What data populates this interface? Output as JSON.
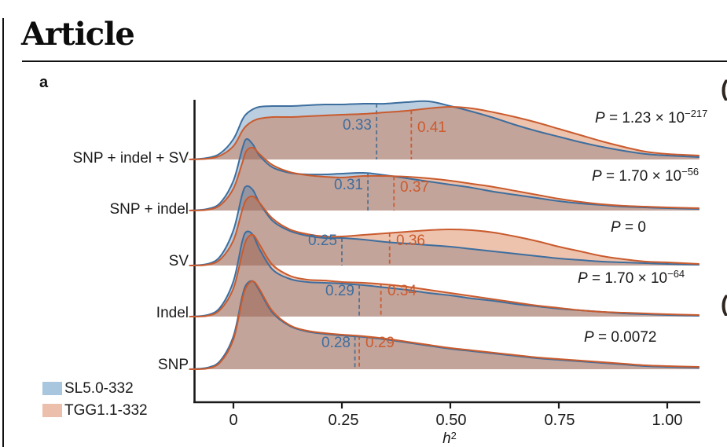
{
  "header": {
    "title": "Article"
  },
  "figure": {
    "panel_label": "a"
  },
  "labels": {
    "p_symbol": "P"
  },
  "legend": {
    "position": "bottom-left",
    "items": [
      {
        "label": "SL5.0-332",
        "color": "#a9c6df"
      },
      {
        "label": "TGG1.1-332",
        "color": "#ebbfac"
      }
    ]
  },
  "axis": {
    "x_ticks": [
      "0",
      "0.25",
      "0.50",
      "0.75",
      "1.00"
    ],
    "x_tick_values": [
      0,
      0.25,
      0.5,
      0.75,
      1.0
    ],
    "label_base": "h",
    "label_exp": "2"
  },
  "colors": {
    "sl_line": "#3d6e9e",
    "tgg_line": "#c95b2e",
    "sl_fill": "#4a7fae",
    "tgg_fill": "#d2622a",
    "sl_dash": "#53718e",
    "tgg_dash": "#cb5b2e",
    "axis": "#1a1a1a"
  },
  "edge_glyphs": [
    "(",
    "("
  ],
  "chart_data": {
    "type": "area",
    "subtype": "ridgeline-density",
    "title": "",
    "xlabel": "h2",
    "ylabel": "",
    "x_range": [
      -0.1,
      1.074
    ],
    "series_names": [
      "SL5.0-332",
      "TGG1.1-332"
    ],
    "note": "y values are estimated density curve heights (px above each ridge baseline)",
    "x_grid": [
      -0.102,
      -0.06,
      -0.03,
      0,
      0.02,
      0.03,
      0.045,
      0.06,
      0.09,
      0.13,
      0.17,
      0.21,
      0.25,
      0.3,
      0.35,
      0.4,
      0.45,
      0.5,
      0.55,
      0.6,
      0.65,
      0.7,
      0.75,
      0.8,
      0.85,
      0.9,
      0.95,
      1.0,
      1.074
    ],
    "ridges": [
      {
        "label": "SNP + indel + SV",
        "median_sl": 0.33,
        "median_tgg": 0.41,
        "median_sl_label": "0.33",
        "median_tgg_label": "0.41",
        "p_base": " = 1.23 × 10",
        "p_exp": "−217",
        "sl": [
          0,
          2,
          8,
          26,
          50,
          58,
          64,
          67,
          68,
          68,
          69,
          70,
          70,
          71,
          71,
          73,
          74,
          68,
          61,
          53,
          44,
          36,
          29,
          22,
          16,
          11,
          7,
          5,
          3
        ],
        "tgg": [
          0,
          1,
          5,
          17,
          36,
          43,
          49,
          52,
          54,
          54,
          55,
          56,
          57,
          58,
          60,
          62,
          65,
          67,
          65,
          60,
          54,
          47,
          39,
          31,
          23,
          16,
          10,
          7,
          5
        ]
      },
      {
        "label": "SNP + indel",
        "median_sl": 0.31,
        "median_tgg": 0.37,
        "median_sl_label": "0.31",
        "median_tgg_label": "0.37",
        "p_base": " = 1.70 × 10",
        "p_exp": "−56",
        "sl": [
          0,
          2,
          10,
          38,
          78,
          91,
          84,
          70,
          55,
          48,
          46,
          46,
          47,
          48,
          45,
          41,
          37,
          33,
          29,
          24,
          20,
          16,
          12,
          9,
          7,
          5,
          4,
          3,
          2
        ],
        "tgg": [
          0,
          1,
          7,
          28,
          60,
          76,
          80,
          72,
          58,
          49,
          45,
          43,
          42,
          44,
          44,
          43,
          41,
          38,
          34,
          30,
          25,
          20,
          15,
          11,
          8,
          6,
          5,
          4,
          3
        ]
      },
      {
        "label": "SV",
        "median_sl": 0.25,
        "median_tgg": 0.36,
        "median_sl_label": "0.25",
        "median_tgg_label": "0.36",
        "p_base": " = 0",
        "p_exp": "",
        "sl": [
          0,
          2,
          12,
          45,
          90,
          101,
          96,
          80,
          57,
          44,
          38,
          35,
          35,
          33,
          30,
          28,
          26,
          24,
          21,
          18,
          15,
          12,
          9,
          7,
          5,
          4,
          3,
          2,
          1
        ],
        "tgg": [
          0,
          1,
          8,
          32,
          70,
          84,
          88,
          80,
          60,
          46,
          40,
          37,
          37,
          39,
          41,
          43,
          45,
          46,
          45,
          42,
          37,
          31,
          24,
          18,
          12,
          8,
          5,
          4,
          2
        ]
      },
      {
        "label": "Indel",
        "median_sl": 0.29,
        "median_tgg": 0.34,
        "median_sl_label": "0.29",
        "median_tgg_label": "0.34",
        "p_base": " = 1.70 × 10",
        "p_exp": "−64",
        "sl": [
          0,
          2,
          12,
          45,
          95,
          108,
          104,
          86,
          60,
          48,
          44,
          43,
          42,
          40,
          37,
          34,
          30,
          27,
          23,
          20,
          16,
          13,
          10,
          8,
          6,
          4,
          3,
          2,
          1
        ],
        "tgg": [
          0,
          1,
          9,
          36,
          80,
          98,
          104,
          92,
          66,
          52,
          47,
          46,
          44,
          43,
          41,
          38,
          34,
          30,
          26,
          22,
          18,
          14,
          11,
          8,
          6,
          5,
          4,
          3,
          2
        ]
      },
      {
        "label": "SNP",
        "median_sl": 0.28,
        "median_tgg": 0.29,
        "median_sl_label": "0.28",
        "median_tgg_label": "0.29",
        "p_base": " = 0.0072",
        "p_exp": "",
        "sl": [
          0,
          2,
          11,
          42,
          92,
          108,
          112,
          100,
          72,
          55,
          48,
          45,
          43,
          41,
          38,
          34,
          30,
          26,
          23,
          20,
          17,
          14,
          12,
          10,
          8,
          6,
          4,
          3,
          2
        ],
        "tgg": [
          0,
          1,
          9,
          38,
          88,
          105,
          112,
          102,
          74,
          56,
          49,
          46,
          44,
          42,
          39,
          35,
          31,
          27,
          24,
          21,
          18,
          15,
          13,
          11,
          9,
          7,
          5,
          4,
          3
        ]
      }
    ]
  }
}
